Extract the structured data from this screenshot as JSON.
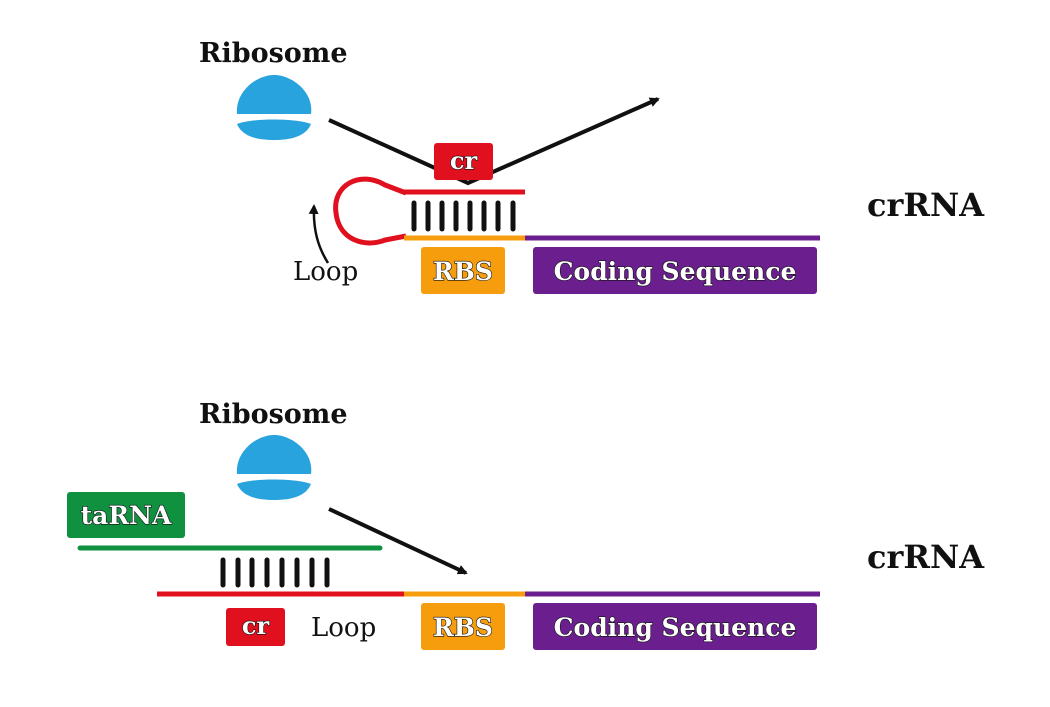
{
  "colors": {
    "red": "#e0101e",
    "orange": "#f59d0c",
    "purple": "#6b1f8f",
    "green": "#0f9140",
    "ribosome": "#29a3dd",
    "black": "#111111"
  },
  "top_panel": {
    "ribosome_label": "Ribosome",
    "cr_label": "cr",
    "loop_label": "Loop",
    "rbs_label": "RBS",
    "coding_label": "Coding Sequence",
    "crrna_label": "crRNA"
  },
  "bottom_panel": {
    "ribosome_label": "Ribosome",
    "tarna_label": "taRNA",
    "cr_label": "cr",
    "loop_label": "Loop",
    "rbs_label": "RBS",
    "coding_label": "Coding Sequence",
    "crrna_label": "crRNA"
  }
}
